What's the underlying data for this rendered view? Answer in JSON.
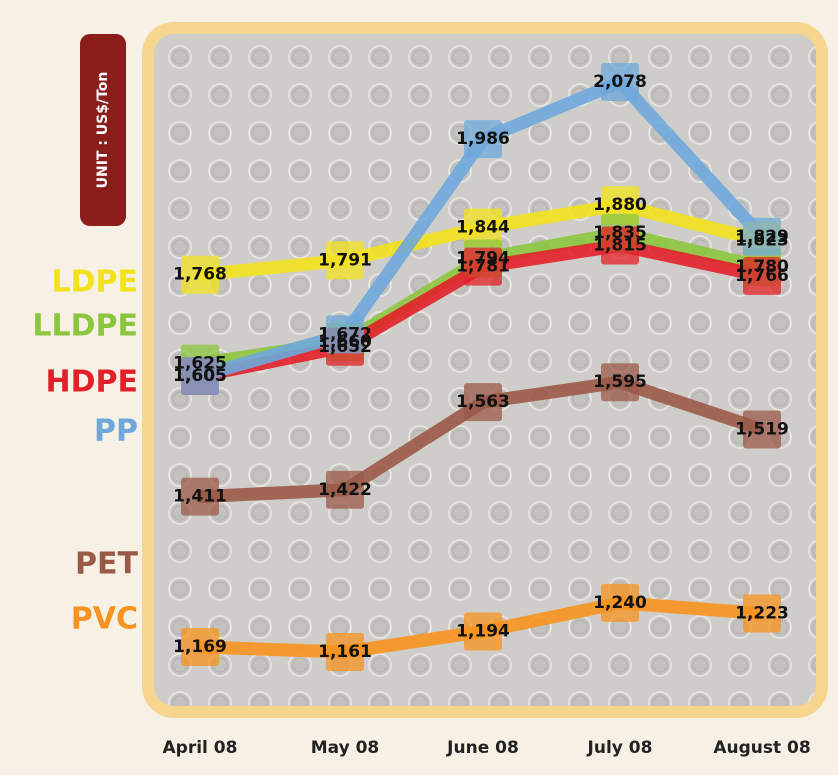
{
  "chart_data": {
    "type": "line",
    "unit": "UNIT : US$/Ton",
    "categories": [
      "April 08",
      "May 08",
      "June 08",
      "July 08",
      "August 08"
    ],
    "series": [
      {
        "name": "LDPE",
        "color": "#f2e21c",
        "values": [
          1768,
          1791,
          1844,
          1880,
          1823
        ],
        "value_labels": [
          "1,768",
          "1,791",
          "1,844",
          "1,880",
          "1,823"
        ]
      },
      {
        "name": "LLDPE",
        "color": "#8cc63f",
        "values": [
          1625,
          1660,
          1794,
          1835,
          1780
        ],
        "value_labels": [
          "1,625",
          "1,660",
          "1,794",
          "1,835",
          "1,780"
        ]
      },
      {
        "name": "HDPE",
        "color": "#e3202a",
        "values": [
          1605,
          1652,
          1781,
          1815,
          1766
        ],
        "value_labels": [
          "1,605",
          "1,652",
          "1,781",
          "1,815",
          "1,766"
        ]
      },
      {
        "name": "PP",
        "color": "#6fa8dc",
        "values": [
          1605,
          1672,
          1986,
          2078,
          1829
        ],
        "value_labels": [
          "1,605",
          "1,672",
          "1,986",
          "2,078",
          "1,829"
        ]
      },
      {
        "name": "PET",
        "color": "#9b5a48",
        "values": [
          1411,
          1422,
          1563,
          1595,
          1519
        ],
        "value_labels": [
          "1,411",
          "1,422",
          "1,563",
          "1,595",
          "1,519"
        ]
      },
      {
        "name": "PVC",
        "color": "#f7931e",
        "values": [
          1169,
          1161,
          1194,
          1240,
          1223
        ],
        "value_labels": [
          "1,169",
          "1,161",
          "1,194",
          "1,240",
          "1,223"
        ]
      }
    ]
  }
}
